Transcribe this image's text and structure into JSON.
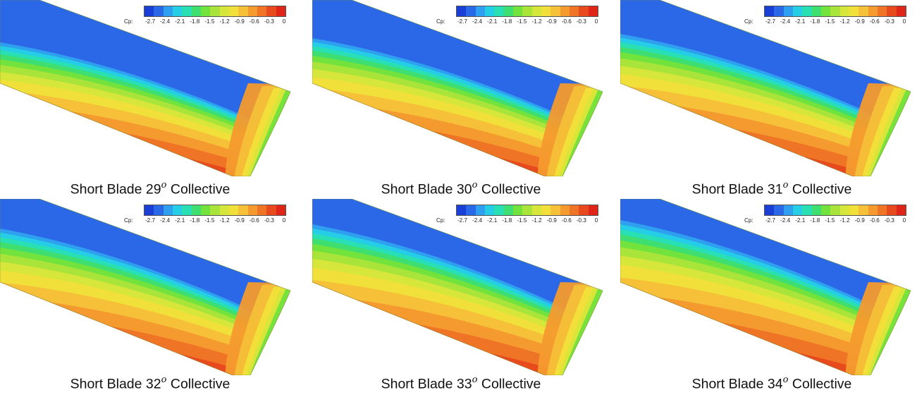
{
  "colorbar": {
    "label": "Cp:",
    "ticks": [
      "-2.7",
      "-2.4",
      "-2.1",
      "-1.8",
      "-1.5",
      "-1.2",
      "-0.9",
      "-0.6",
      "-0.3",
      "0"
    ],
    "colors": [
      "#1a3fd6",
      "#2a68e8",
      "#2f9ff0",
      "#25cde6",
      "#28e0b4",
      "#3ede70",
      "#72e23c",
      "#a8e43a",
      "#d6e63a",
      "#f2e03a",
      "#f6c038",
      "#f49a2e",
      "#ef7426",
      "#e84a1e",
      "#df2418"
    ]
  },
  "panels": [
    {
      "caption_prefix": "Short Blade 29",
      "caption_sup": "o",
      "caption_suffix": "Collective",
      "collective": 29
    },
    {
      "caption_prefix": "Short Blade 30",
      "caption_sup": "o",
      "caption_suffix": "Collective",
      "collective": 30
    },
    {
      "caption_prefix": "Short Blade 31",
      "caption_sup": "o",
      "caption_suffix": "Collective",
      "collective": 31
    },
    {
      "caption_prefix": "Short Blade 32",
      "caption_sup": "o",
      "caption_suffix": "Collective",
      "collective": 32
    },
    {
      "caption_prefix": "Short Blade 33",
      "caption_sup": "o",
      "caption_suffix": "Collective",
      "collective": 33
    },
    {
      "caption_prefix": "Short Blade 34",
      "caption_sup": "o",
      "caption_suffix": "Collective",
      "collective": 34
    }
  ]
}
